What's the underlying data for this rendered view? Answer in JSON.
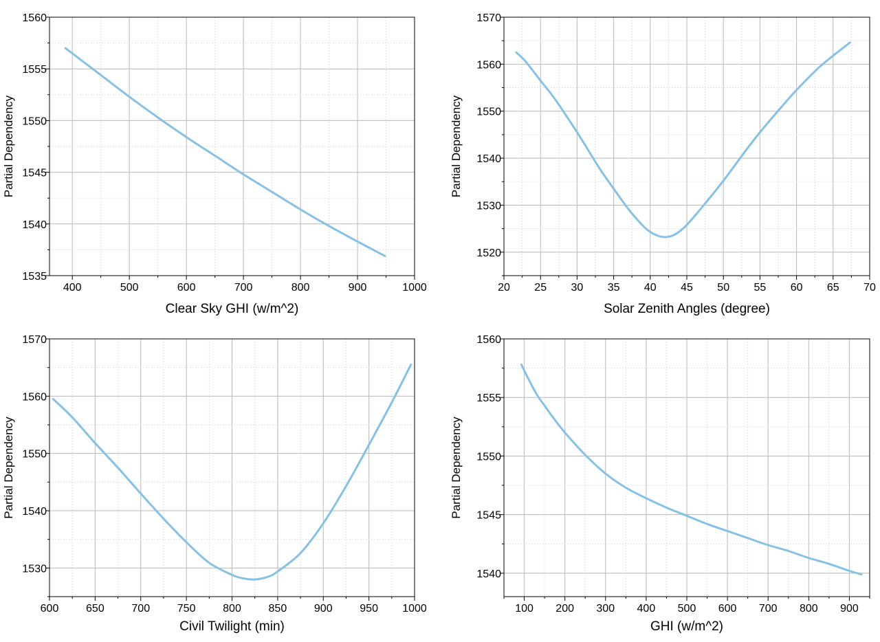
{
  "chart_data": [
    {
      "type": "line",
      "xlabel": "Clear Sky GHI (w/m^2)",
      "ylabel": "Partial Dependency",
      "xlim": [
        360,
        1000
      ],
      "ylim": [
        1535,
        1560
      ],
      "xticks": [
        400,
        500,
        600,
        700,
        800,
        900,
        1000
      ],
      "yticks": [
        1535,
        1540,
        1545,
        1550,
        1555,
        1560
      ],
      "grid": true,
      "color": "#85c1e6",
      "series": [
        {
          "x": [
            388,
            450,
            500,
            550,
            600,
            650,
            700,
            750,
            800,
            850,
            900,
            948
          ],
          "y": [
            1557.0,
            1554.4,
            1552.3,
            1550.3,
            1548.4,
            1546.6,
            1544.8,
            1543.1,
            1541.4,
            1539.8,
            1538.3,
            1536.9
          ]
        }
      ]
    },
    {
      "type": "line",
      "xlabel": "Solar Zenith Angles (degree)",
      "ylabel": "Partial Dependency",
      "xlim": [
        20,
        70
      ],
      "ylim": [
        1515,
        1570
      ],
      "xticks": [
        20,
        25,
        30,
        35,
        40,
        45,
        50,
        55,
        60,
        65,
        70
      ],
      "yticks": [
        1520,
        1530,
        1540,
        1550,
        1560,
        1570
      ],
      "grid": true,
      "color": "#85c1e6",
      "series": [
        {
          "x": [
            21.7,
            23,
            25,
            27,
            30,
            33,
            35,
            37,
            39,
            40,
            41,
            42,
            43,
            44,
            45,
            47,
            50,
            53,
            55,
            58,
            60,
            63,
            65,
            67.3
          ],
          "y": [
            1562.5,
            1560.5,
            1556.5,
            1552.5,
            1545.5,
            1538.0,
            1533.5,
            1529.2,
            1525.6,
            1524.3,
            1523.5,
            1523.2,
            1523.5,
            1524.4,
            1525.8,
            1529.4,
            1535.2,
            1541.5,
            1545.5,
            1551.0,
            1554.5,
            1559.2,
            1561.8,
            1564.6
          ]
        }
      ]
    },
    {
      "type": "line",
      "xlabel": "Civil Twilight (min)",
      "ylabel": "Partial Dependency",
      "xlim": [
        600,
        1000
      ],
      "ylim": [
        1525,
        1570
      ],
      "xticks": [
        600,
        650,
        700,
        750,
        800,
        850,
        900,
        950,
        1000
      ],
      "yticks": [
        1530,
        1540,
        1550,
        1560,
        1570
      ],
      "grid": true,
      "color": "#85c1e6",
      "series": [
        {
          "x": [
            604,
            625,
            650,
            675,
            700,
            725,
            750,
            775,
            800,
            812,
            825,
            840,
            850,
            875,
            900,
            925,
            950,
            975,
            996
          ],
          "y": [
            1559.5,
            1556.3,
            1551.8,
            1547.5,
            1543.0,
            1538.6,
            1534.5,
            1530.9,
            1528.8,
            1528.2,
            1528.0,
            1528.5,
            1529.4,
            1532.6,
            1537.8,
            1544.3,
            1551.5,
            1558.9,
            1565.5
          ]
        }
      ]
    },
    {
      "type": "line",
      "xlabel": "GHI (w/m^2)",
      "ylabel": "Partial Dependency",
      "xlim": [
        50,
        950
      ],
      "ylim": [
        1538,
        1560
      ],
      "xticks": [
        100,
        200,
        300,
        400,
        500,
        600,
        700,
        800,
        900
      ],
      "yticks": [
        1540,
        1545,
        1550,
        1555,
        1560
      ],
      "grid": true,
      "color": "#85c1e6",
      "series": [
        {
          "x": [
            93,
            110,
            130,
            150,
            175,
            200,
            250,
            300,
            350,
            400,
            450,
            500,
            550,
            600,
            650,
            700,
            750,
            800,
            850,
            900,
            930
          ],
          "y": [
            1557.8,
            1556.6,
            1555.3,
            1554.3,
            1553.1,
            1552.0,
            1550.1,
            1548.5,
            1547.3,
            1546.4,
            1545.6,
            1544.9,
            1544.2,
            1543.6,
            1543.0,
            1542.4,
            1541.9,
            1541.3,
            1540.8,
            1540.2,
            1539.9
          ]
        }
      ]
    }
  ]
}
